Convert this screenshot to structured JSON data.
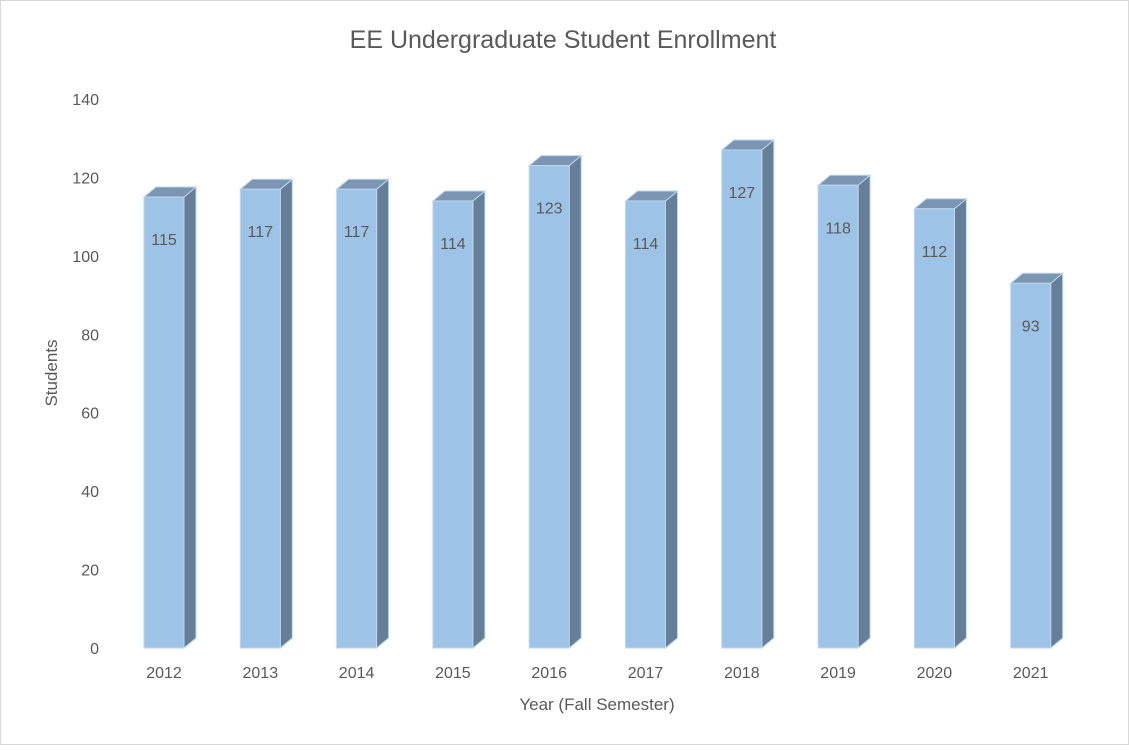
{
  "chart_data": {
    "type": "bar",
    "style": "3d-column",
    "title": "EE Undergraduate Student Enrollment",
    "xlabel": "Year (Fall Semester)",
    "ylabel": "Students",
    "categories": [
      "2012",
      "2013",
      "2014",
      "2015",
      "2016",
      "2017",
      "2018",
      "2019",
      "2020",
      "2021"
    ],
    "values": [
      115,
      117,
      117,
      114,
      123,
      114,
      127,
      118,
      112,
      93
    ],
    "ylim": [
      0,
      140
    ],
    "yticks": [
      0,
      20,
      40,
      60,
      80,
      100,
      120,
      140
    ],
    "grid": false,
    "legend": "none",
    "data_labels": true,
    "colors": {
      "front": "#9dc3e6",
      "side": "#667f99",
      "top": "#7b95b2",
      "edge": "#bdd7ee",
      "text": "#595959"
    }
  }
}
